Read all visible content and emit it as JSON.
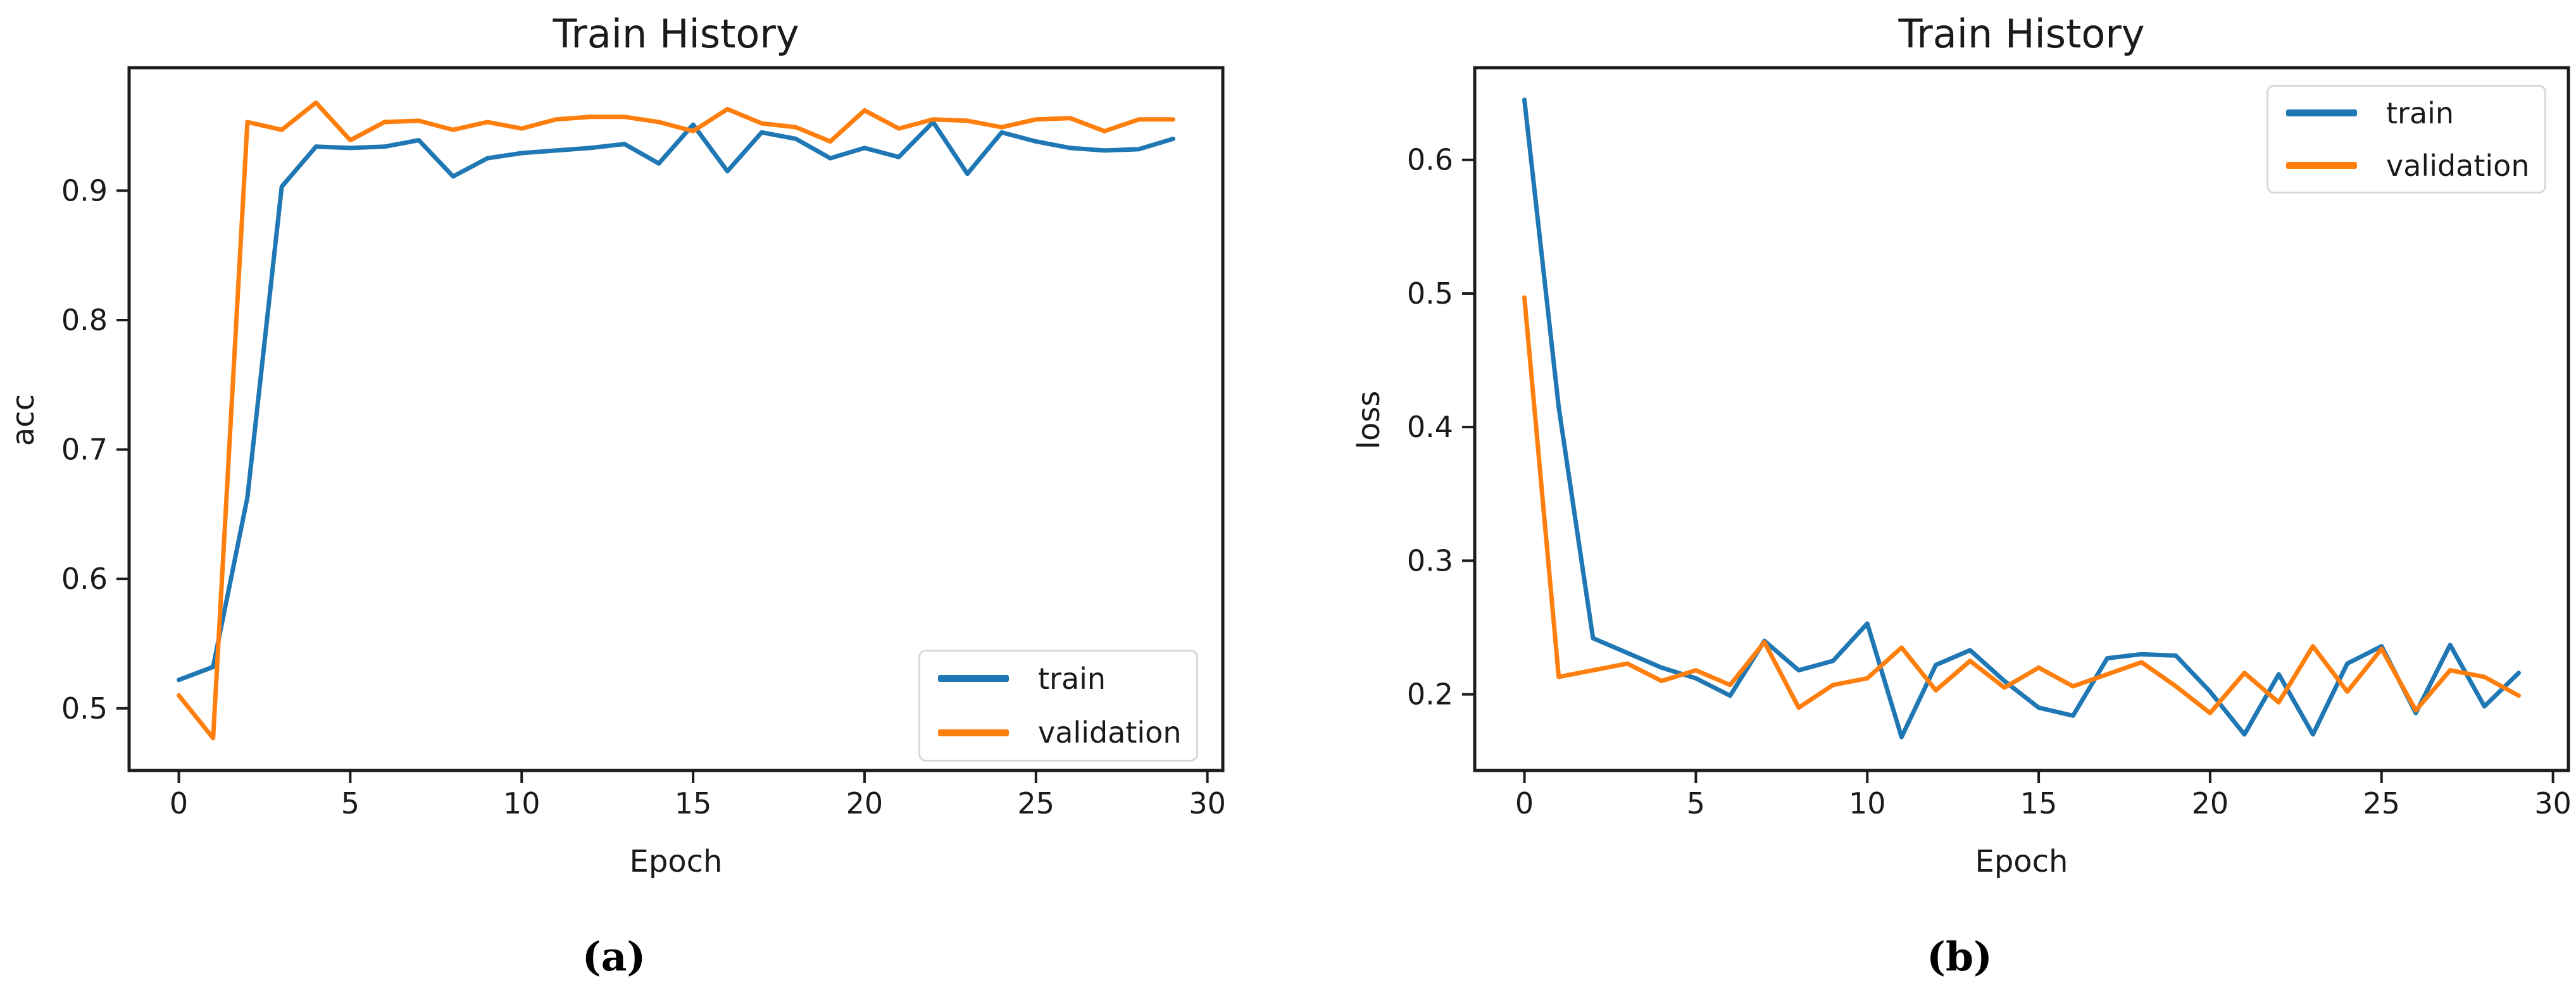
{
  "colors": {
    "background": "#ffffff",
    "axis": "#1c1c1c",
    "text": "#1a1a1a",
    "legend_border": "#d8d8d8",
    "train": "#1f77b4",
    "validation": "#ff7f0e"
  },
  "figures": [
    {
      "panel": "a",
      "caption": "(a)"
    },
    {
      "panel": "b",
      "caption": "(b)"
    }
  ],
  "chart_data": [
    {
      "type": "line",
      "title": "Train History",
      "xlabel": "Epoch",
      "ylabel": "acc",
      "grid": false,
      "legend_loc": "lower right",
      "xlim": [
        -1.45,
        30.45
      ],
      "ylim": [
        0.452,
        0.995
      ],
      "xticks": [
        0,
        5,
        10,
        15,
        20,
        25,
        30
      ],
      "xtick_labels": [
        "0",
        "5",
        "10",
        "15",
        "20",
        "25",
        "30"
      ],
      "yticks": [
        0.5,
        0.6,
        0.7,
        0.8,
        0.9
      ],
      "ytick_labels": [
        "0.5",
        "0.6",
        "0.7",
        "0.8",
        "0.9"
      ],
      "x": [
        0,
        1,
        2,
        3,
        4,
        5,
        6,
        7,
        8,
        9,
        10,
        11,
        12,
        13,
        14,
        15,
        16,
        17,
        18,
        19,
        20,
        21,
        22,
        23,
        24,
        25,
        26,
        27,
        28,
        29
      ],
      "series": [
        {
          "name": "train",
          "color_key": "train",
          "values": [
            0.522,
            0.532,
            0.663,
            0.903,
            0.934,
            0.933,
            0.934,
            0.939,
            0.911,
            0.925,
            0.929,
            0.931,
            0.933,
            0.936,
            0.921,
            0.951,
            0.915,
            0.945,
            0.94,
            0.925,
            0.933,
            0.926,
            0.953,
            0.913,
            0.945,
            0.938,
            0.933,
            0.931,
            0.932,
            0.94
          ]
        },
        {
          "name": "validation",
          "color_key": "validation",
          "values": [
            0.51,
            0.477,
            0.953,
            0.947,
            0.968,
            0.939,
            0.953,
            0.954,
            0.947,
            0.953,
            0.948,
            0.955,
            0.957,
            0.957,
            0.953,
            0.946,
            0.963,
            0.952,
            0.949,
            0.938,
            0.962,
            0.948,
            0.955,
            0.954,
            0.949,
            0.955,
            0.956,
            0.946,
            0.955,
            0.955
          ]
        }
      ]
    },
    {
      "type": "line",
      "title": "Train History",
      "xlabel": "Epoch",
      "ylabel": "loss",
      "grid": false,
      "legend_loc": "upper right",
      "xlim": [
        -1.45,
        30.45
      ],
      "ylim": [
        0.143,
        0.669
      ],
      "xticks": [
        0,
        5,
        10,
        15,
        20,
        25,
        30
      ],
      "xtick_labels": [
        "0",
        "5",
        "10",
        "15",
        "20",
        "25",
        "30"
      ],
      "yticks": [
        0.2,
        0.3,
        0.4,
        0.5,
        0.6
      ],
      "ytick_labels": [
        "0.2",
        "0.3",
        "0.4",
        "0.5",
        "0.6"
      ],
      "x": [
        0,
        1,
        2,
        3,
        4,
        5,
        6,
        7,
        8,
        9,
        10,
        11,
        12,
        13,
        14,
        15,
        16,
        17,
        18,
        19,
        20,
        21,
        22,
        23,
        24,
        25,
        26,
        27,
        28,
        29
      ],
      "series": [
        {
          "name": "train",
          "color_key": "train",
          "values": [
            0.645,
            0.415,
            0.242,
            0.231,
            0.22,
            0.212,
            0.199,
            0.24,
            0.218,
            0.225,
            0.253,
            0.168,
            0.222,
            0.233,
            0.21,
            0.19,
            0.184,
            0.227,
            0.23,
            0.229,
            0.202,
            0.17,
            0.215,
            0.17,
            0.223,
            0.236,
            0.186,
            0.237,
            0.191,
            0.216
          ]
        },
        {
          "name": "validation",
          "color_key": "validation",
          "values": [
            0.497,
            0.213,
            0.218,
            0.223,
            0.21,
            0.218,
            0.207,
            0.239,
            0.19,
            0.207,
            0.212,
            0.235,
            0.203,
            0.225,
            0.205,
            0.22,
            0.206,
            0.215,
            0.224,
            0.206,
            0.186,
            0.216,
            0.194,
            0.236,
            0.202,
            0.234,
            0.188,
            0.218,
            0.213,
            0.199
          ]
        }
      ]
    }
  ]
}
